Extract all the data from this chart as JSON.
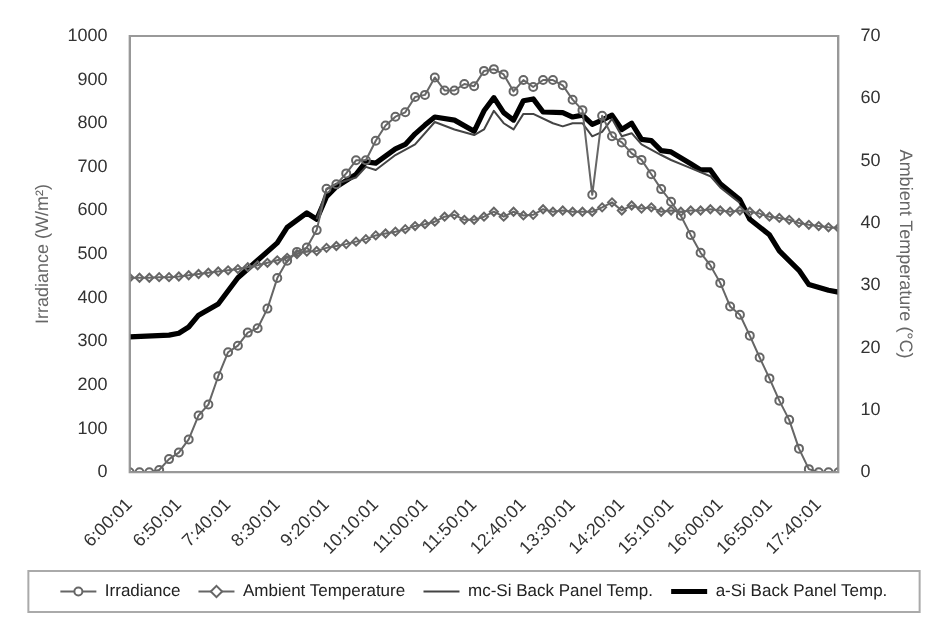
{
  "chart_data": {
    "type": "line",
    "ylabel": "Irradiance (W/m²)",
    "y2label": "Ambient Temperature (°C)",
    "legend": "bottom",
    "x": [
      6,
      6.167,
      6.333,
      6.5,
      6.667,
      6.833,
      7,
      7.167,
      7.333,
      7.5,
      7.667,
      7.833,
      8,
      8.167,
      8.333,
      8.5,
      8.667,
      8.833,
      9,
      9.167,
      9.333,
      9.5,
      9.667,
      9.833,
      10,
      10.167,
      10.333,
      10.5,
      10.667,
      10.833,
      11,
      11.167,
      11.333,
      11.5,
      11.667,
      11.833,
      12,
      12.167,
      12.333,
      12.5,
      12.667,
      12.833,
      13,
      13.167,
      13.333,
      13.5,
      13.667,
      13.833,
      14,
      14.167,
      14.333,
      14.5,
      14.667,
      14.833,
      15,
      15.167,
      15.333,
      15.5,
      15.667,
      15.833,
      16,
      16.167,
      16.333,
      16.5,
      16.667,
      16.833,
      17,
      17.167,
      17.333,
      17.5,
      17.667,
      17.833,
      18
    ],
    "xlim": [
      6,
      18
    ],
    "xticks": [
      {
        "value": 6.0003,
        "label": "6:00:01"
      },
      {
        "value": 6.8336,
        "label": "6:50:01"
      },
      {
        "value": 7.6669,
        "label": "7:40:01"
      },
      {
        "value": 8.5003,
        "label": "8:30:01"
      },
      {
        "value": 9.3336,
        "label": "9:20:01"
      },
      {
        "value": 10.1669,
        "label": "10:10:01"
      },
      {
        "value": 11.0003,
        "label": "11:00:01"
      },
      {
        "value": 11.8336,
        "label": "11:50:01"
      },
      {
        "value": 12.6669,
        "label": "12:40:01"
      },
      {
        "value": 13.5003,
        "label": "13:30:01"
      },
      {
        "value": 14.3336,
        "label": "14:20:01"
      },
      {
        "value": 15.1669,
        "label": "15:10:01"
      },
      {
        "value": 16.0003,
        "label": "16:00:01"
      },
      {
        "value": 16.8336,
        "label": "16:50:01"
      },
      {
        "value": 17.6669,
        "label": "17:40:01"
      }
    ],
    "ylim": [
      0,
      1000
    ],
    "yticks": [
      0,
      100,
      200,
      300,
      400,
      500,
      600,
      700,
      800,
      900,
      1000
    ],
    "y2lim": [
      0,
      70
    ],
    "y2ticks": [
      0,
      10,
      20,
      30,
      40,
      50,
      60,
      70
    ],
    "series": [
      {
        "name": "Irradiance",
        "color": "#666666",
        "marker": "circle",
        "values": [
          0,
          0,
          0,
          5,
          30,
          45,
          75,
          130,
          155,
          220,
          275,
          290,
          320,
          330,
          375,
          445,
          485,
          505,
          515,
          555,
          650,
          660,
          685,
          715,
          715,
          760,
          795,
          815,
          825,
          860,
          865,
          905,
          875,
          875,
          890,
          885,
          920,
          924,
          912,
          873,
          899,
          883,
          899,
          899,
          887,
          854,
          830,
          636,
          817,
          770,
          756,
          731,
          716,
          683,
          649,
          620,
          588,
          544,
          503,
          474,
          434,
          380,
          361,
          313,
          263,
          215,
          164,
          120,
          54,
          7,
          0,
          0,
          0
        ]
      },
      {
        "name": "Ambient Temperature",
        "color": "#666666",
        "marker": "diamond",
        "axis": "y2",
        "values": [
          31.2,
          31.2,
          31.2,
          31.3,
          31.3,
          31.4,
          31.6,
          31.8,
          32,
          32.2,
          32.4,
          32.6,
          32.9,
          33.2,
          33.6,
          34,
          34.4,
          35,
          35.4,
          35.5,
          36,
          36.3,
          36.6,
          37,
          37.4,
          38,
          38.3,
          38.6,
          39,
          39.5,
          39.8,
          40.2,
          41,
          41.3,
          40.5,
          40.5,
          41,
          41.8,
          41,
          41.8,
          41.2,
          41.3,
          42.2,
          41.8,
          42,
          41.8,
          41.8,
          41.8,
          42.5,
          43.3,
          42,
          42.8,
          42.3,
          42.5,
          41.8,
          42,
          41.8,
          42,
          42,
          42.2,
          42,
          41.8,
          42,
          41.8,
          41.5,
          41,
          40.8,
          40.5,
          40,
          39.7,
          39.5,
          39.3,
          39.2
        ]
      },
      {
        "name": "mc-Si Back Panel Temp.",
        "color": "#444444",
        "marker": "none",
        "axis": "y2",
        "x": [
          9.167,
          9.333,
          9.5,
          9.833,
          10,
          10.167,
          10.5,
          10.833,
          11.167,
          11.5,
          11.833,
          12,
          12.167,
          12.333,
          12.5,
          12.667,
          12.833,
          13.167,
          13.333,
          13.5,
          13.667,
          13.833,
          14,
          14.167,
          14.333,
          14.5,
          14.667,
          15,
          15.167,
          15.5,
          15.833,
          16,
          16.333
        ],
        "values": [
          40.6,
          45.4,
          46.3,
          47.3,
          49,
          48.5,
          50.9,
          52.6,
          56.2,
          55,
          54.1,
          55,
          58,
          56,
          55,
          57.5,
          57.5,
          56,
          55.5,
          56,
          56,
          53.9,
          54.6,
          56.7,
          53.9,
          54.4,
          52.6,
          50.9,
          50.1,
          48.8,
          47.5,
          45.7,
          43.2
        ]
      },
      {
        "name": "a-Si Back Panel Temp.",
        "color": "#000000",
        "marker": "none",
        "axis": "y2",
        "x": [
          6,
          6.667,
          6.833,
          7,
          7.167,
          7.5,
          7.833,
          8.167,
          8.5,
          8.667,
          9,
          9.167,
          9.333,
          9.5,
          9.833,
          10,
          10.167,
          10.5,
          10.667,
          10.833,
          11,
          11.167,
          11.5,
          11.833,
          12,
          12.167,
          12.333,
          12.5,
          12.667,
          12.833,
          13,
          13.333,
          13.5,
          13.667,
          13.833,
          14,
          14.167,
          14.333,
          14.5,
          14.667,
          14.833,
          15,
          15.167,
          15.5,
          15.667,
          15.833,
          16,
          16.333,
          16.5,
          16.833,
          17,
          17.333,
          17.5,
          17.833,
          18
        ],
        "values": [
          21.7,
          22,
          22.3,
          23.3,
          25.2,
          27,
          31.2,
          34,
          36.8,
          39.3,
          41.6,
          40.6,
          44.2,
          45.8,
          47.8,
          49.8,
          49.6,
          51.9,
          52.6,
          54.3,
          55.7,
          57,
          56.5,
          54.7,
          58,
          60.1,
          57.7,
          56.5,
          59.6,
          59.9,
          57.8,
          57.7,
          57,
          57.3,
          55.8,
          56.5,
          57.3,
          55,
          56,
          53.4,
          53.2,
          51.6,
          51.4,
          49.5,
          48.5,
          48.5,
          46.3,
          43.7,
          40.6,
          38.1,
          35.5,
          32.4,
          30.1,
          29.2,
          28.9
        ]
      }
    ]
  }
}
